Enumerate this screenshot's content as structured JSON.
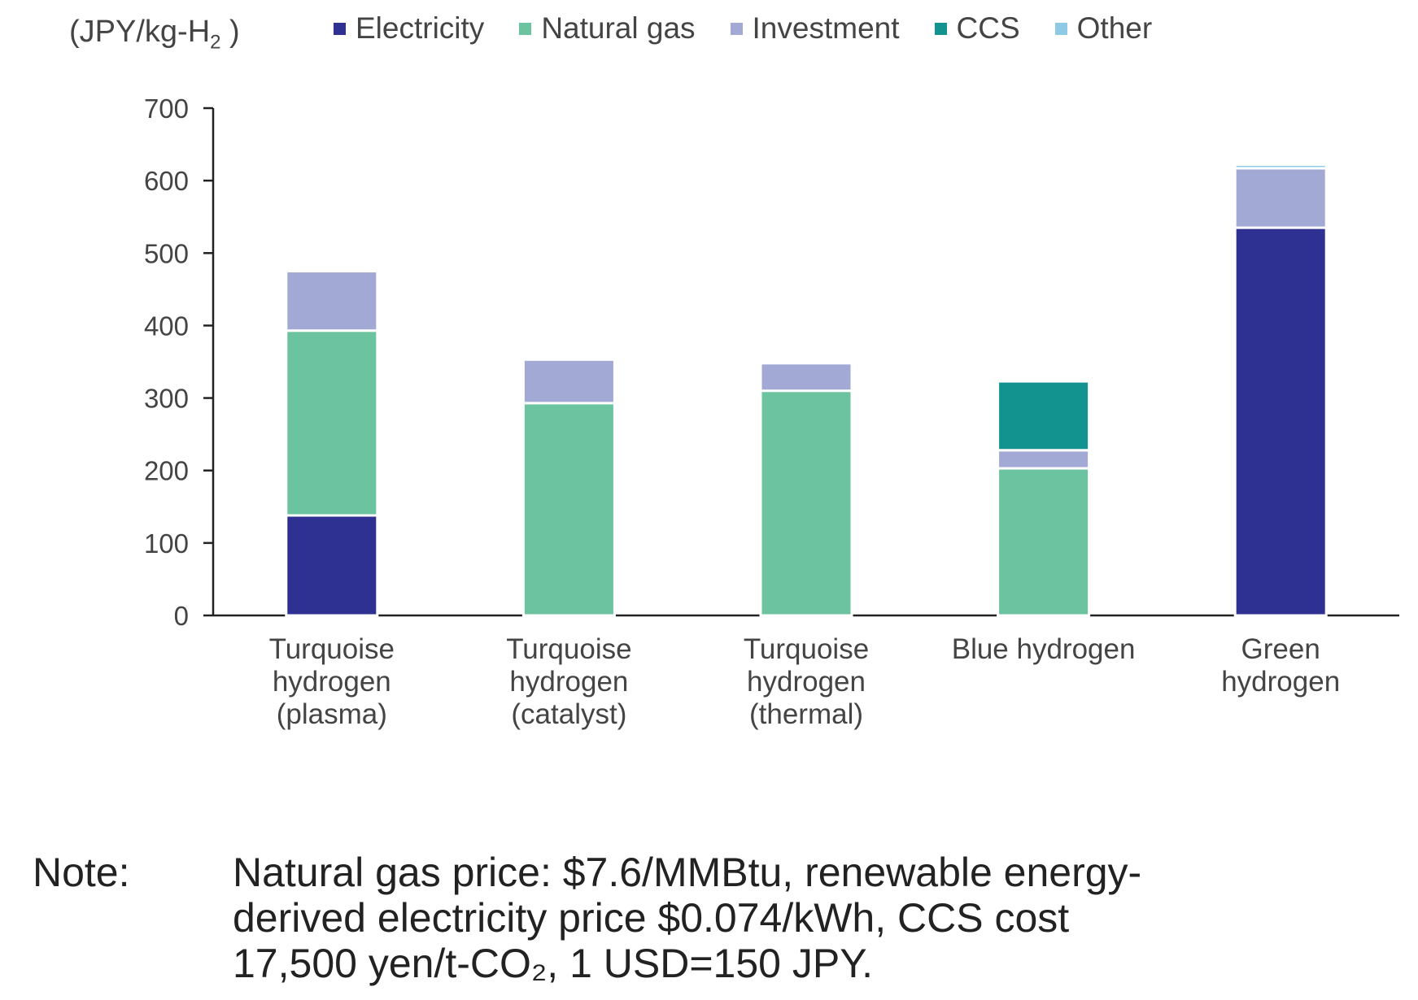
{
  "chart_data": {
    "type": "bar",
    "stacked": true,
    "ylabel": "(JPY/kg-H",
    "ylabel_sub": "2",
    "ylabel_close": " )",
    "ylim": [
      0,
      700
    ],
    "yticks": [
      0,
      100,
      200,
      300,
      400,
      500,
      600,
      700
    ],
    "categories": [
      [
        "Turquoise",
        "hydrogen",
        "(plasma)"
      ],
      [
        "Turquoise",
        "hydrogen",
        "(catalyst)"
      ],
      [
        "Turquoise",
        "hydrogen",
        "(thermal)"
      ],
      [
        "Blue hydrogen"
      ],
      [
        "Green",
        "hydrogen"
      ]
    ],
    "series": [
      {
        "name": "Electricity",
        "color": "#2e3192",
        "values": [
          138,
          0,
          0,
          0,
          535
        ]
      },
      {
        "name": "Natural gas",
        "color": "#6cc39f",
        "values": [
          255,
          293,
          310,
          203,
          0
        ]
      },
      {
        "name": "Investment",
        "color": "#a2a9d4",
        "values": [
          82,
          60,
          38,
          25,
          82
        ]
      },
      {
        "name": "CCS",
        "color": "#13938f",
        "values": [
          0,
          0,
          0,
          95,
          0
        ]
      },
      {
        "name": "Other",
        "color": "#8ecae6",
        "values": [
          0,
          0,
          0,
          0,
          5
        ]
      }
    ],
    "legend_position": "top",
    "grid": false
  },
  "note": {
    "label": "Note:",
    "lines": [
      "Natural gas price: $7.6/MMBtu, renewable energy-",
      "derived electricity price $0.074/kWh, CCS cost",
      "17,500 yen/t-CO₂, 1 USD=150 JPY."
    ]
  }
}
